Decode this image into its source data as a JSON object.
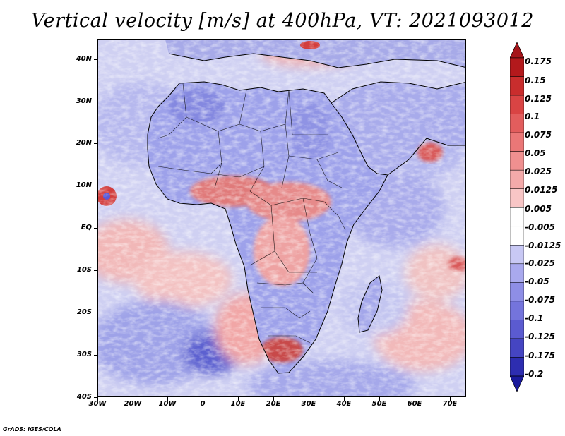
{
  "title": "Vertical velocity [m/s] at 400hPa, VT: 2021093012",
  "lat_labels": [
    "40N",
    "30N",
    "20N",
    "10N",
    "EQ",
    "10S",
    "20S",
    "30S",
    "40S"
  ],
  "lon_labels": [
    "30W",
    "20W",
    "10W",
    "0",
    "10E",
    "20E",
    "30E",
    "40E",
    "50E",
    "60E",
    "70E"
  ],
  "colorbar": {
    "labels": [
      "0.175",
      "0.15",
      "0.125",
      "0.1",
      "0.075",
      "0.05",
      "0.025",
      "0.0125",
      "0.005",
      "-0.005",
      "-0.0125",
      "-0.025",
      "-0.05",
      "-0.075",
      "-0.1",
      "-0.125",
      "-0.175",
      "-0.2"
    ],
    "colors": [
      "#b3191c",
      "#c92d2d",
      "#d94444",
      "#e25d5d",
      "#ea7777",
      "#f09090",
      "#f4aaaa",
      "#f8c6c6",
      "#ffffff",
      "#ffffff",
      "#c8c8f4",
      "#a9a9ee",
      "#8e8ee6",
      "#7474dc",
      "#5b5bd0",
      "#4545c2",
      "#2d2db0",
      "#1a1a9c"
    ]
  },
  "footer": "GrADS: IGES/COLA",
  "colors": {
    "land_blue": "#8f93e6",
    "ocean_pink": "#f1b9b9",
    "deep_blue": "#4d54c8",
    "strong_red": "#d23d3d"
  }
}
